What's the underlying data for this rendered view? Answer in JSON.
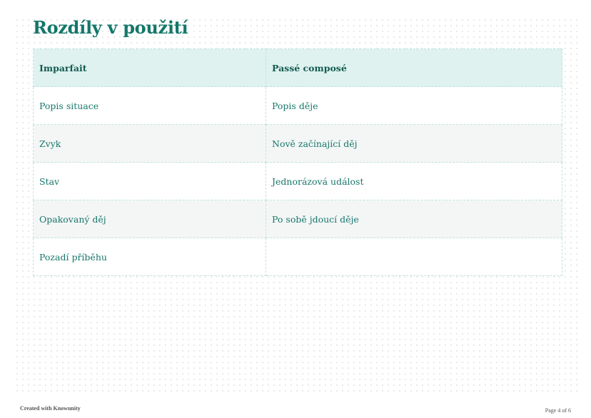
{
  "title": "Rozdíly v použití",
  "table": {
    "headers": [
      "Imparfait",
      "Passé composé"
    ],
    "rows": [
      [
        "Popis situace",
        "Popis děje"
      ],
      [
        "Zvyk",
        "Nově začínající děj"
      ],
      [
        "Stav",
        "Jednorázová událost"
      ],
      [
        "Opakovaný děj",
        "Po sobě jdoucí děje"
      ],
      [
        "Pozadí příběhu",
        ""
      ]
    ]
  },
  "footer": {
    "left": "Created with Knowunity",
    "right": "Page 4 of 6"
  },
  "colors": {
    "accent": "#14776a",
    "header_bg": "#dff2ef"
  }
}
